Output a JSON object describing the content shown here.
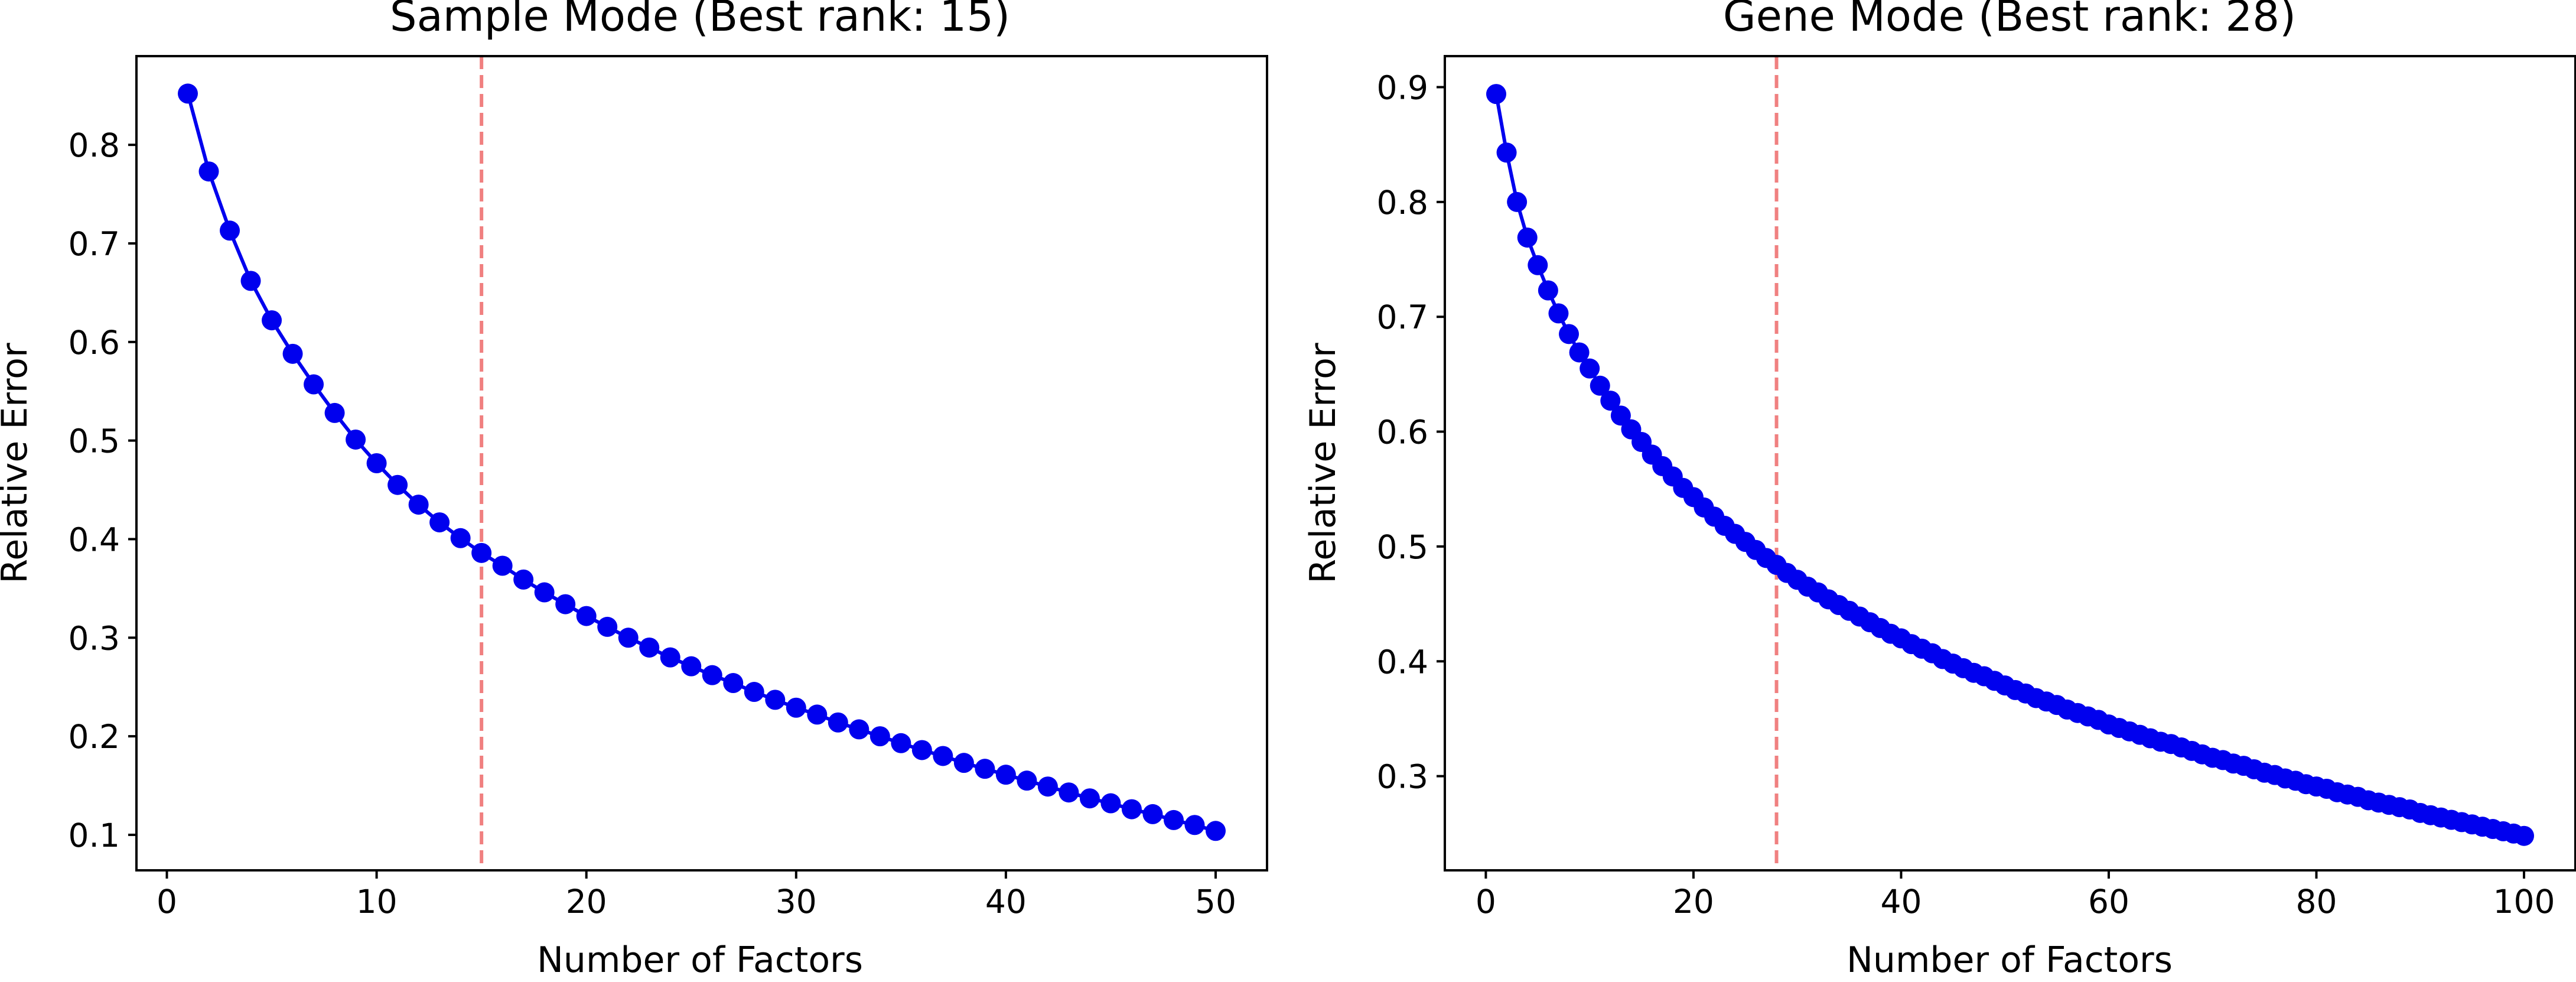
{
  "chart_data": [
    {
      "type": "line",
      "title": "Sample Mode (Best rank: 15)",
      "xlabel": "Number of Factors",
      "ylabel": "Relative Error",
      "xlim": [
        -1.45,
        52.45
      ],
      "ylim": [
        0.064,
        0.89
      ],
      "xticks": [
        0,
        10,
        20,
        30,
        40,
        50
      ],
      "yticks": [
        0.1,
        0.2,
        0.3,
        0.4,
        0.5,
        0.6,
        0.7,
        0.8
      ],
      "xtick_labels": [
        "0",
        "10",
        "20",
        "30",
        "40",
        "50"
      ],
      "ytick_labels": [
        "0.1",
        "0.2",
        "0.3",
        "0.4",
        "0.5",
        "0.6",
        "0.7",
        "0.8"
      ],
      "best_rank": 15,
      "grid": false,
      "colors": {
        "series": "#0000ee",
        "best_rank_line": "#f08080"
      },
      "series": [
        {
          "x": [
            1,
            2,
            3,
            4,
            5,
            6,
            7,
            8,
            9,
            10,
            11,
            12,
            13,
            14,
            15,
            16,
            17,
            18,
            19,
            20,
            21,
            22,
            23,
            24,
            25,
            26,
            27,
            28,
            29,
            30,
            31,
            32,
            33,
            34,
            35,
            36,
            37,
            38,
            39,
            40,
            41,
            42,
            43,
            44,
            45,
            46,
            47,
            48,
            49,
            50
          ],
          "values": [
            0.852,
            0.773,
            0.713,
            0.662,
            0.622,
            0.588,
            0.557,
            0.528,
            0.501,
            0.477,
            0.455,
            0.435,
            0.417,
            0.401,
            0.386,
            0.373,
            0.359,
            0.346,
            0.334,
            0.322,
            0.311,
            0.3,
            0.29,
            0.28,
            0.271,
            0.262,
            0.254,
            0.245,
            0.237,
            0.229,
            0.222,
            0.214,
            0.207,
            0.2,
            0.193,
            0.186,
            0.18,
            0.173,
            0.167,
            0.161,
            0.155,
            0.149,
            0.143,
            0.137,
            0.132,
            0.126,
            0.121,
            0.115,
            0.11,
            0.104
          ]
        }
      ]
    },
    {
      "type": "line",
      "title": "Gene Mode (Best rank: 28)",
      "xlabel": "Number of Factors",
      "ylabel": "Relative Error",
      "xlim": [
        -3.95,
        104.95
      ],
      "ylim": [
        0.218,
        0.927
      ],
      "xticks": [
        0,
        20,
        40,
        60,
        80,
        100
      ],
      "yticks": [
        0.3,
        0.4,
        0.5,
        0.6,
        0.7,
        0.8,
        0.9
      ],
      "xtick_labels": [
        "0",
        "20",
        "40",
        "60",
        "80",
        "100"
      ],
      "ytick_labels": [
        "0.3",
        "0.4",
        "0.5",
        "0.6",
        "0.7",
        "0.8",
        "0.9"
      ],
      "best_rank": 28,
      "grid": false,
      "colors": {
        "series": "#0000ee",
        "best_rank_line": "#f08080"
      },
      "series": [
        {
          "x_start": 1,
          "x_end": 100,
          "values": [
            0.894,
            0.843,
            0.8,
            0.769,
            0.745,
            0.723,
            0.703,
            0.685,
            0.669,
            0.655,
            0.64,
            0.627,
            0.614,
            0.602,
            0.591,
            0.58,
            0.57,
            0.561,
            0.551,
            0.543,
            0.534,
            0.526,
            0.518,
            0.511,
            0.504,
            0.497,
            0.49,
            0.484,
            0.477,
            0.471,
            0.465,
            0.46,
            0.454,
            0.449,
            0.444,
            0.439,
            0.434,
            0.429,
            0.424,
            0.42,
            0.415,
            0.411,
            0.407,
            0.402,
            0.398,
            0.394,
            0.39,
            0.387,
            0.383,
            0.379,
            0.375,
            0.372,
            0.368,
            0.365,
            0.362,
            0.358,
            0.355,
            0.352,
            0.349,
            0.345,
            0.342,
            0.339,
            0.336,
            0.333,
            0.33,
            0.328,
            0.325,
            0.322,
            0.319,
            0.316,
            0.314,
            0.311,
            0.309,
            0.306,
            0.303,
            0.301,
            0.298,
            0.296,
            0.293,
            0.291,
            0.289,
            0.286,
            0.284,
            0.282,
            0.279,
            0.277,
            0.275,
            0.273,
            0.271,
            0.268,
            0.266,
            0.264,
            0.262,
            0.26,
            0.258,
            0.256,
            0.254,
            0.252,
            0.25,
            0.248
          ]
        }
      ]
    }
  ]
}
